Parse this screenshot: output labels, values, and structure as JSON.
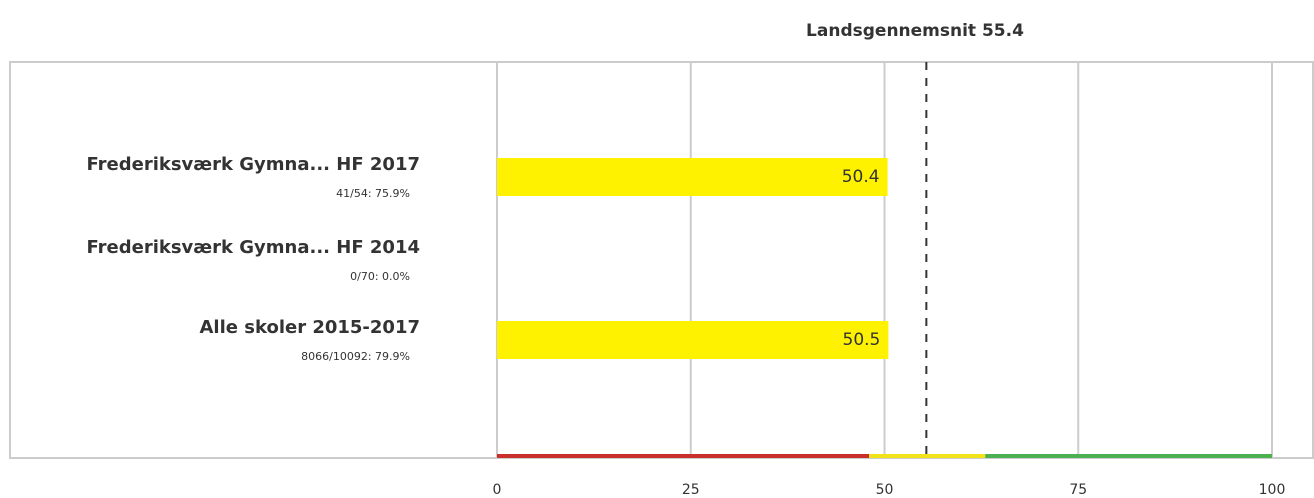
{
  "chart_data": {
    "type": "hbar",
    "categories": [
      "Frederiksværk Gymna... HF 2017",
      "Frederiksværk Gymna... HF 2014",
      "Alle skoler 2015-2017"
    ],
    "sublabels": [
      "41/54: 75.9%",
      "0/70: 0.0%",
      "8066/10092: 79.9%"
    ],
    "values": [
      50.4,
      null,
      50.5
    ],
    "color": "#fff200",
    "xlim": [
      0,
      100
    ],
    "xticks": [
      0,
      25,
      50,
      75,
      100
    ],
    "grid": true,
    "reference": {
      "label": "Landsgennemsnit 55.4",
      "value": 55.4
    },
    "bands": [
      {
        "from": 0,
        "to": 48,
        "color": "#c8302c"
      },
      {
        "from": 48,
        "to": 63,
        "color": "#f2e21a"
      },
      {
        "from": 63,
        "to": 100,
        "color": "#4caf50"
      }
    ]
  }
}
